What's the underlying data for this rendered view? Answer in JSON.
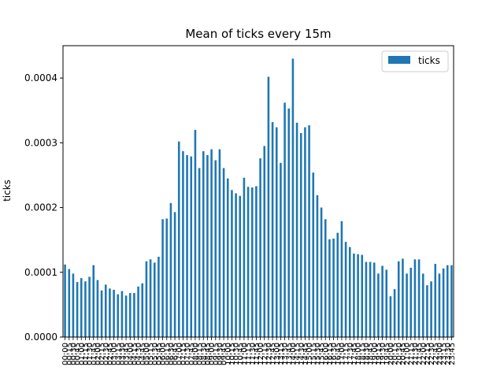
{
  "chart_data": {
    "type": "bar",
    "title": "Mean of ticks every 15m",
    "xlabel": "",
    "ylabel": "ticks",
    "ylim": [
      0,
      0.00045
    ],
    "yticks": [
      0.0,
      0.0001,
      0.0002,
      0.0003,
      0.0004
    ],
    "ytick_labels": [
      "0.0000",
      "0.0001",
      "0.0002",
      "0.0003",
      "0.0004"
    ],
    "legend": {
      "position": "top-right",
      "entries": [
        "ticks"
      ]
    },
    "bar_color": "#1f77b4",
    "grid": false,
    "categories": [
      "00:00",
      "00:15",
      "00:30",
      "00:45",
      "01:00",
      "01:15",
      "01:30",
      "01:45",
      "02:00",
      "02:15",
      "02:30",
      "02:45",
      "03:00",
      "03:15",
      "03:30",
      "03:45",
      "04:00",
      "04:15",
      "04:30",
      "04:45",
      "05:00",
      "05:15",
      "05:30",
      "05:45",
      "06:00",
      "06:15",
      "06:30",
      "06:45",
      "07:00",
      "07:15",
      "07:30",
      "07:45",
      "08:00",
      "08:15",
      "08:30",
      "08:45",
      "09:00",
      "09:15",
      "09:30",
      "09:45",
      "10:00",
      "10:15",
      "10:30",
      "10:45",
      "11:00",
      "11:15",
      "11:30",
      "11:45",
      "12:00",
      "12:15",
      "12:30",
      "12:45",
      "13:00",
      "13:15",
      "13:30",
      "13:45",
      "14:00",
      "14:15",
      "14:30",
      "14:45",
      "15:00",
      "15:15",
      "15:30",
      "15:45",
      "16:00",
      "16:15",
      "16:30",
      "16:45",
      "17:00",
      "17:15",
      "17:30",
      "17:45",
      "18:00",
      "18:15",
      "18:30",
      "18:45",
      "19:00",
      "19:15",
      "19:30",
      "19:45",
      "20:00",
      "20:15",
      "20:30",
      "20:45",
      "21:00",
      "21:15",
      "21:30",
      "21:45",
      "22:00",
      "22:15",
      "22:30",
      "22:45",
      "23:00",
      "23:15",
      "23:30",
      "23:45"
    ],
    "series": [
      {
        "name": "ticks",
        "values": [
          0.000112,
          0.000105,
          9.8e-05,
          8.5e-05,
          9.1e-05,
          8.6e-05,
          9.3e-05,
          0.000111,
          8.8e-05,
          7.2e-05,
          8.1e-05,
          7.5e-05,
          7.3e-05,
          6.6e-05,
          7.1e-05,
          6.4e-05,
          6.8e-05,
          6.8e-05,
          7.8e-05,
          8.3e-05,
          0.000117,
          0.00012,
          0.000115,
          0.000124,
          0.000182,
          0.000183,
          0.000207,
          0.000193,
          0.000302,
          0.000287,
          0.000281,
          0.000279,
          0.00032,
          0.000261,
          0.000287,
          0.000281,
          0.00029,
          0.000273,
          0.00029,
          0.000261,
          0.000245,
          0.000227,
          0.000222,
          0.000218,
          0.000246,
          0.000232,
          0.000231,
          0.000233,
          0.000276,
          0.000295,
          0.000402,
          0.000332,
          0.000324,
          0.000269,
          0.000362,
          0.000353,
          0.00043,
          0.000331,
          0.000315,
          0.000324,
          0.000327,
          0.000254,
          0.000219,
          0.0002,
          0.000182,
          0.000151,
          0.000152,
          0.000161,
          0.000179,
          0.000147,
          0.000139,
          0.000129,
          0.000128,
          0.000127,
          0.000116,
          0.000116,
          0.000115,
          9.8e-05,
          0.00011,
          0.000104,
          6.3e-05,
          7.4e-05,
          0.000117,
          0.000121,
          9.8e-05,
          0.000107,
          0.00012,
          0.00012,
          9.8e-05,
          8e-05,
          8.6e-05,
          0.000113,
          9.8e-05,
          0.000106,
          0.000111,
          0.000111
        ]
      }
    ]
  }
}
